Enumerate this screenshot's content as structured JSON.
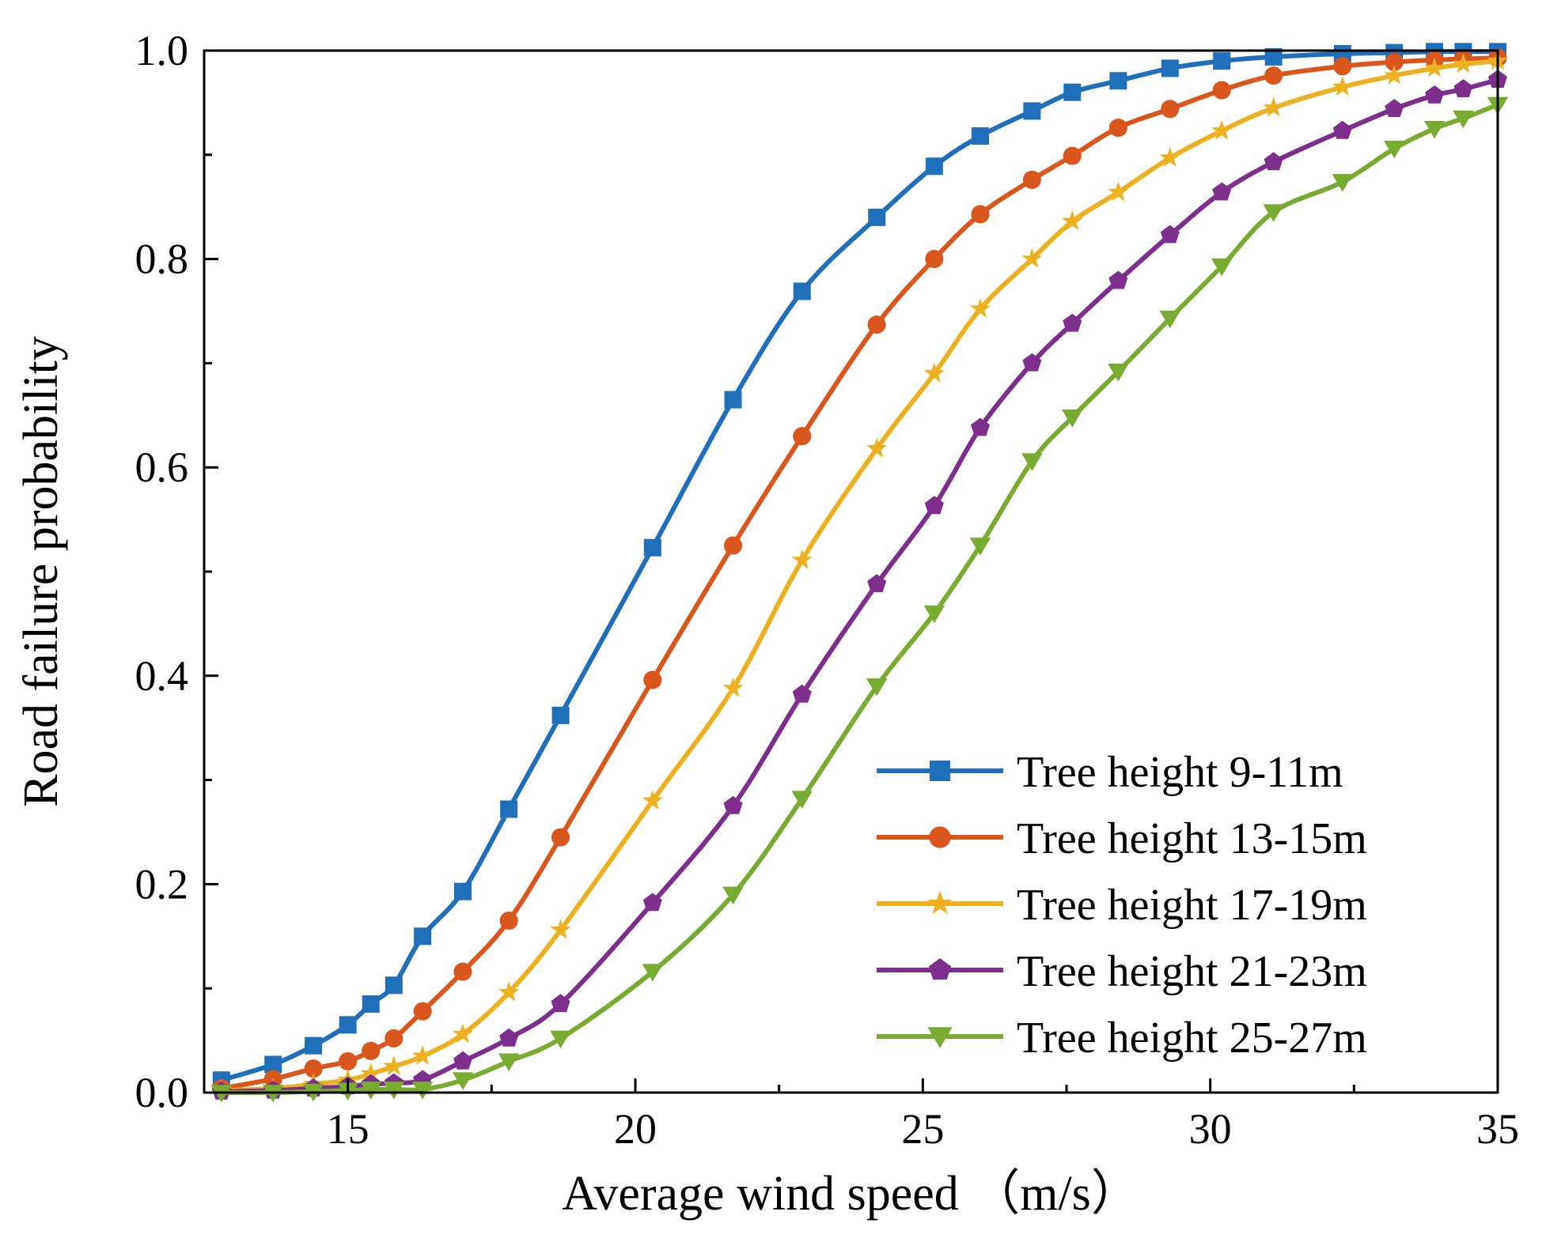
{
  "chart_data": {
    "type": "line",
    "title": "",
    "xlabel": "Average wind speed （m/s）",
    "ylabel": "Road failure probability",
    "xlim": [
      12.5,
      35
    ],
    "ylim": [
      0,
      1.0
    ],
    "xticks": [
      15,
      20,
      25,
      30,
      35
    ],
    "yticks": [
      0.0,
      0.2,
      0.4,
      0.6,
      0.8,
      1.0
    ],
    "xtick_labels": [
      "15",
      "20",
      "25",
      "30",
      "35"
    ],
    "ytick_labels": [
      "0.0",
      "0.2",
      "0.4",
      "0.6",
      "0.8",
      "1.0"
    ],
    "grid": false,
    "legend_position": "bottom-right",
    "series": [
      {
        "name": "Tree height 9-11m",
        "color": "#1f6fba",
        "marker": "square",
        "x": [
          12.8,
          13.7,
          14.4,
          15.0,
          15.4,
          15.8,
          16.3,
          17.0,
          17.8,
          18.7,
          20.3,
          21.7,
          22.9,
          24.2,
          25.2,
          26.0,
          26.9,
          27.6,
          28.4,
          29.3,
          30.2,
          31.1,
          32.3,
          33.2,
          33.9,
          34.4,
          35.0
        ],
        "y": [
          0.012,
          0.027,
          0.045,
          0.065,
          0.085,
          0.103,
          0.15,
          0.193,
          0.272,
          0.362,
          0.523,
          0.665,
          0.769,
          0.84,
          0.889,
          0.918,
          0.942,
          0.96,
          0.971,
          0.983,
          0.99,
          0.994,
          0.997,
          0.998,
          0.999,
          0.999,
          0.999
        ]
      },
      {
        "name": "Tree height 13-15m",
        "color": "#d9561c",
        "marker": "circle",
        "x": [
          12.8,
          13.7,
          14.4,
          15.0,
          15.4,
          15.8,
          16.3,
          17.0,
          17.8,
          18.7,
          20.3,
          21.7,
          22.9,
          24.2,
          25.2,
          26.0,
          26.9,
          27.6,
          28.4,
          29.3,
          30.2,
          31.1,
          32.3,
          33.2,
          33.9,
          34.4,
          35.0
        ],
        "y": [
          0.004,
          0.013,
          0.023,
          0.03,
          0.04,
          0.052,
          0.078,
          0.116,
          0.165,
          0.245,
          0.396,
          0.525,
          0.63,
          0.737,
          0.8,
          0.843,
          0.876,
          0.899,
          0.926,
          0.944,
          0.962,
          0.976,
          0.985,
          0.989,
          0.991,
          0.992,
          0.993
        ]
      },
      {
        "name": "Tree height 17-19m",
        "color": "#edb120",
        "marker": "star",
        "x": [
          12.8,
          13.7,
          14.4,
          15.0,
          15.4,
          15.8,
          16.3,
          17.0,
          17.8,
          18.7,
          20.3,
          21.7,
          22.9,
          24.2,
          25.2,
          26.0,
          26.9,
          27.6,
          28.4,
          29.3,
          30.2,
          31.1,
          32.3,
          33.2,
          33.9,
          34.4,
          35.0
        ],
        "y": [
          0.002,
          0.004,
          0.008,
          0.012,
          0.018,
          0.025,
          0.035,
          0.056,
          0.096,
          0.156,
          0.28,
          0.388,
          0.511,
          0.618,
          0.69,
          0.752,
          0.8,
          0.836,
          0.864,
          0.897,
          0.923,
          0.945,
          0.965,
          0.976,
          0.983,
          0.987,
          0.99
        ]
      },
      {
        "name": "Tree height 21-23m",
        "color": "#7e2f8e",
        "marker": "pentagon",
        "x": [
          12.8,
          13.7,
          14.4,
          15.0,
          15.4,
          15.8,
          16.3,
          17.0,
          17.8,
          18.7,
          20.3,
          21.7,
          22.9,
          24.2,
          25.2,
          26.0,
          26.9,
          27.6,
          28.4,
          29.3,
          30.2,
          31.1,
          32.3,
          33.2,
          33.9,
          34.4,
          35.0
        ],
        "y": [
          0.001,
          0.002,
          0.004,
          0.006,
          0.008,
          0.009,
          0.012,
          0.03,
          0.052,
          0.085,
          0.182,
          0.275,
          0.382,
          0.488,
          0.563,
          0.638,
          0.7,
          0.738,
          0.779,
          0.823,
          0.864,
          0.893,
          0.923,
          0.944,
          0.957,
          0.963,
          0.972
        ]
      },
      {
        "name": "Tree height 25-27m",
        "color": "#77ac30",
        "marker": "triangle-down",
        "x": [
          12.8,
          13.7,
          14.4,
          15.0,
          15.4,
          15.8,
          16.3,
          17.0,
          17.8,
          18.7,
          20.3,
          21.7,
          22.9,
          24.2,
          25.2,
          26.0,
          26.9,
          27.6,
          28.4,
          29.3,
          30.2,
          31.1,
          32.3,
          33.2,
          33.9,
          34.4,
          35.0
        ],
        "y": [
          0.0,
          0.0,
          0.001,
          0.002,
          0.003,
          0.003,
          0.003,
          0.012,
          0.03,
          0.052,
          0.116,
          0.19,
          0.282,
          0.39,
          0.46,
          0.525,
          0.606,
          0.648,
          0.692,
          0.743,
          0.793,
          0.845,
          0.874,
          0.906,
          0.925,
          0.935,
          0.948
        ]
      }
    ]
  }
}
